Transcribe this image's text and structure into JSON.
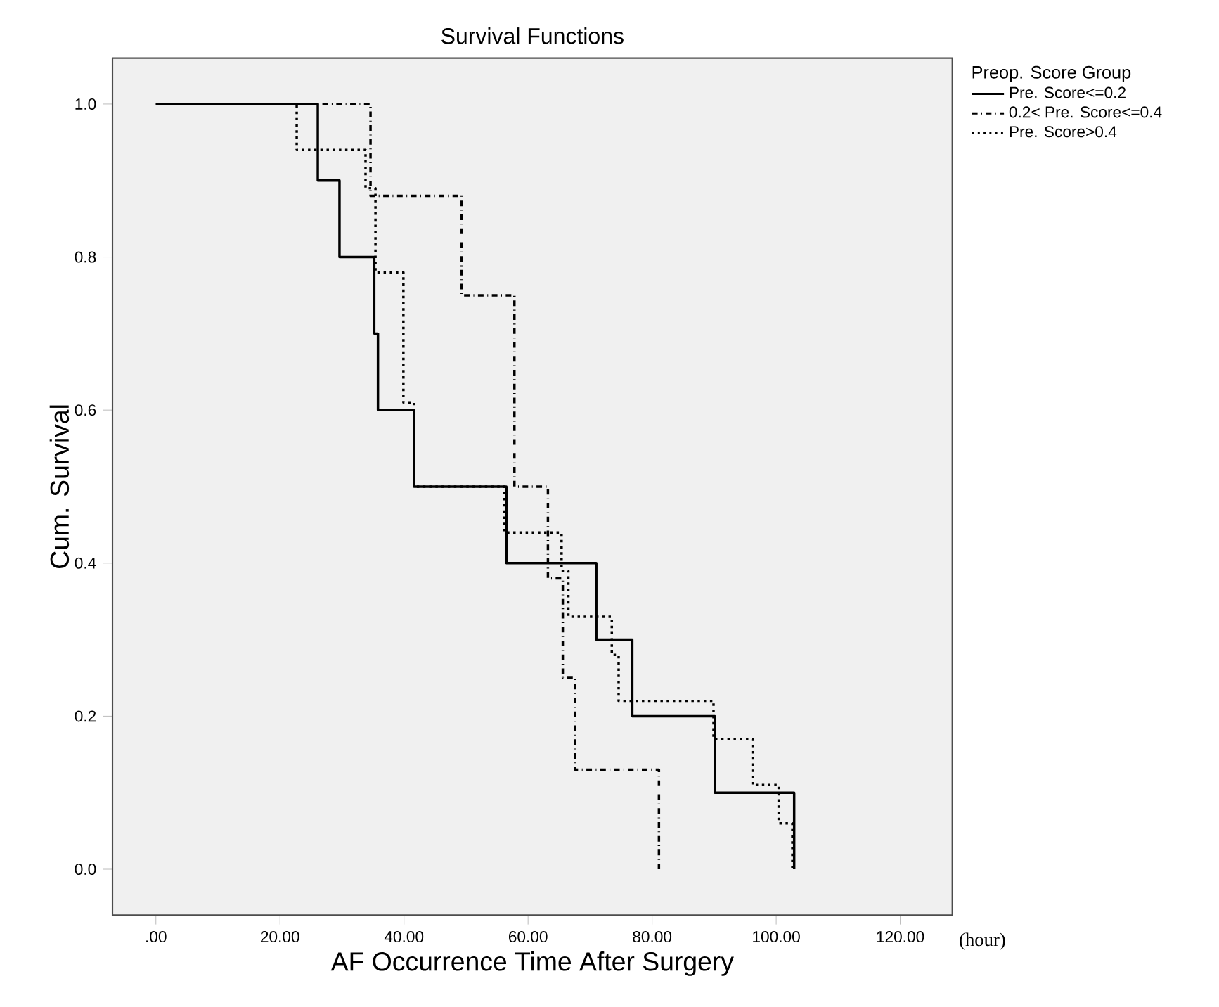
{
  "chart_data": {
    "type": "step",
    "title": "Survival Functions",
    "xlabel": "AF Occurrence Time After Surgery",
    "ylabel": "Cum. Survival",
    "legend_title": "Preop. Score Group",
    "annotations": [
      "(hour)"
    ],
    "xlim": [
      -7,
      128.4
    ],
    "ylim": [
      -0.06,
      1.06
    ],
    "xticks": [
      {
        "value": 0,
        "label": ".00"
      },
      {
        "value": 20,
        "label": "20.00"
      },
      {
        "value": 40,
        "label": "40.00"
      },
      {
        "value": 60,
        "label": "60.00"
      },
      {
        "value": 80,
        "label": "80.00"
      },
      {
        "value": 100,
        "label": "100.00"
      },
      {
        "value": 120,
        "label": "120.00"
      }
    ],
    "yticks": [
      {
        "value": 0,
        "label": "0.0"
      },
      {
        "value": 0.2,
        "label": "0.2"
      },
      {
        "value": 0.4,
        "label": "0.4"
      },
      {
        "value": 0.6,
        "label": "0.6"
      },
      {
        "value": 0.8,
        "label": "0.8"
      },
      {
        "value": 1,
        "label": "1.0"
      }
    ],
    "grid": false,
    "legend": "top right",
    "marker": "none",
    "series": [
      {
        "name": "Pre. Score<=0.2",
        "color": "#000000",
        "line_style": "solid",
        "x": [
          0,
          26.1,
          29.6,
          35.2,
          35.8,
          41.6,
          56.5,
          71.0,
          76.8,
          90.1,
          102.9
        ],
        "values": [
          1.0,
          0.9,
          0.8,
          0.7,
          0.6,
          0.5,
          0.4,
          0.3,
          0.2,
          0.1,
          0.0
        ]
      },
      {
        "name": "0.2< Pre. Score<=0.4",
        "color": "#000000",
        "line_style": "dashdot",
        "x": [
          0,
          34.6,
          49.3,
          57.8,
          63.2,
          65.6,
          67.6,
          81.1
        ],
        "values": [
          1.0,
          0.88,
          0.75,
          0.5,
          0.38,
          0.25,
          0.13,
          0.0
        ]
      },
      {
        "name": "Pre. Score>0.4",
        "color": "#000000",
        "line_style": "dotted",
        "x": [
          0,
          22.7,
          33.8,
          35.4,
          39.9,
          41.6,
          56.2,
          65.4,
          66.5,
          73.5,
          74.6,
          89.9,
          96.2,
          100.4,
          102.6
        ],
        "values": [
          1.0,
          0.94,
          0.89,
          0.78,
          0.61,
          0.5,
          0.44,
          0.39,
          0.33,
          0.28,
          0.22,
          0.17,
          0.11,
          0.06,
          0.0
        ]
      }
    ]
  }
}
